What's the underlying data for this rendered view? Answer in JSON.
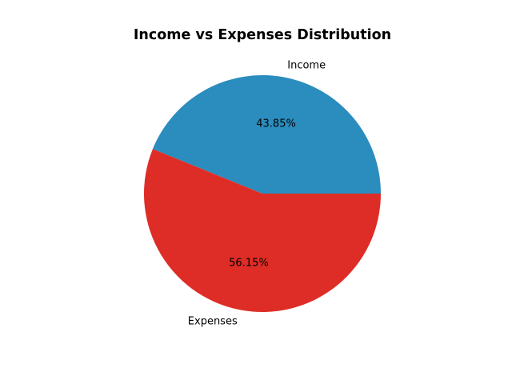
{
  "chart_data": {
    "type": "pie",
    "title": "Income vs Expenses Distribution",
    "categories": [
      "Income",
      "Expenses"
    ],
    "values": [
      43.85,
      56.15
    ],
    "value_labels": [
      "43.85%",
      "56.15%"
    ],
    "colors": [
      "#2b8cbe",
      "#de2d26"
    ],
    "start_angle_deg": 0,
    "direction": "counterclockwise",
    "legend": "none"
  }
}
